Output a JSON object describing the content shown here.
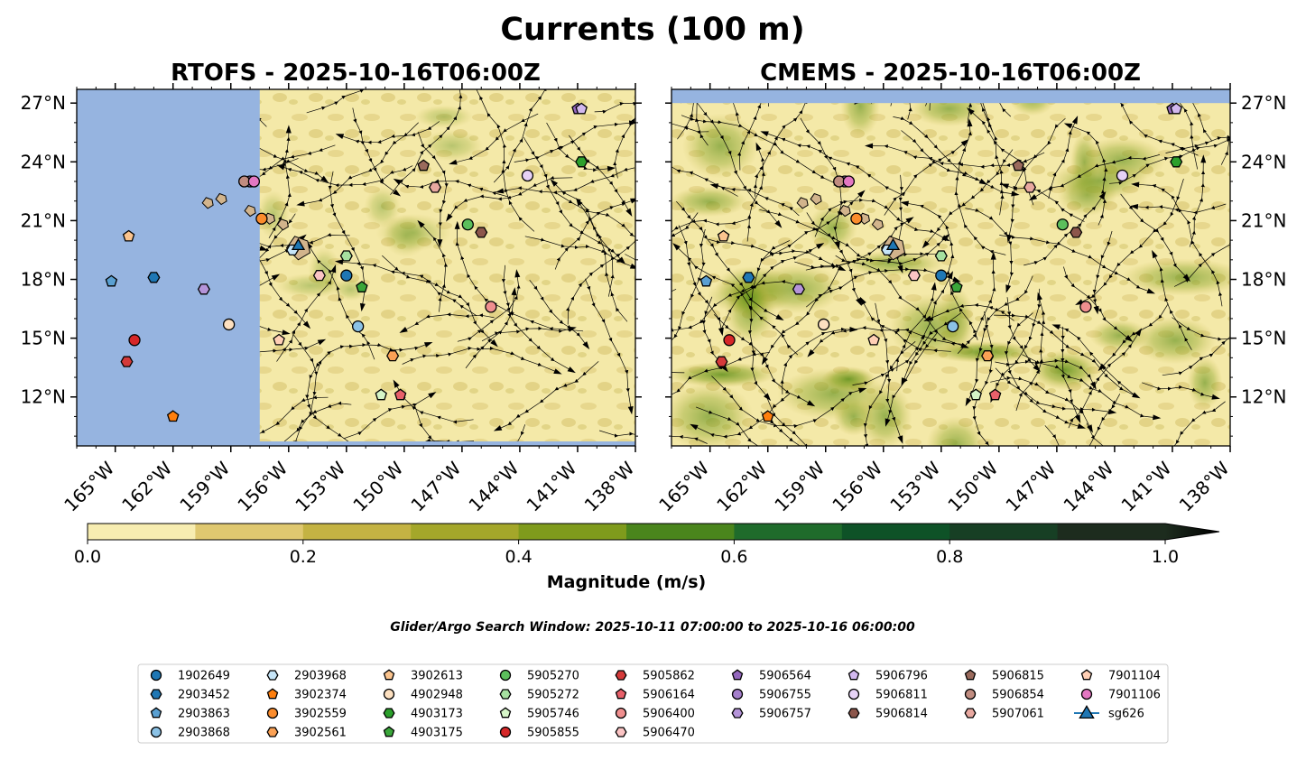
{
  "figure": {
    "title": "Currents (100 m)",
    "search_window": "Glider/Argo Search Window: 2025-10-11 07:00:00 to 2025-10-16 06:00:00"
  },
  "panels": [
    {
      "id": "rtofs",
      "title": "RTOFS - 2025-10-16T06:00Z",
      "valid_lon_min": -157.5
    },
    {
      "id": "cmems",
      "title": "CMEMS - 2025-10-16T06:00Z",
      "valid_lat_max": 27.0
    }
  ],
  "map": {
    "lon_range": [
      -167.0,
      -138.0
    ],
    "lat_range": [
      9.5,
      27.7
    ],
    "lon_ticks": [
      -165,
      -162,
      -159,
      -156,
      -153,
      -150,
      -147,
      -144,
      -141,
      -138
    ],
    "lon_tick_labels": [
      "165°W",
      "162°W",
      "159°W",
      "156°W",
      "153°W",
      "150°W",
      "147°W",
      "144°W",
      "141°W",
      "138°W"
    ],
    "lat_ticks": [
      27,
      24,
      21,
      18,
      15,
      12
    ],
    "lat_tick_labels": [
      "27°N",
      "24°N",
      "21°N",
      "18°N",
      "15°N",
      "12°N"
    ]
  },
  "colorbar": {
    "label": "Magnitude (m/s)",
    "range": [
      0,
      1.0
    ],
    "ticks": [
      0.0,
      0.2,
      0.4,
      0.6,
      0.8,
      1.0
    ],
    "tick_labels": [
      "0.0",
      "0.2",
      "0.4",
      "0.6",
      "0.8",
      "1.0"
    ],
    "colors": [
      "#f7edb1",
      "#dfc870",
      "#c4b343",
      "#a4a72a",
      "#7f9b1c",
      "#4a851c",
      "#1f6b2b",
      "#0e5227",
      "#173f24",
      "#1d2c1e"
    ],
    "extend": "max"
  },
  "colors": {
    "land": "#d2b48c",
    "no_data": "#96b4e0"
  },
  "islands": [
    {
      "name": "Hawaii",
      "lon": -155.5,
      "lat": 19.6
    },
    {
      "name": "Maui",
      "lon": -156.3,
      "lat": 20.8
    },
    {
      "name": "Molokai",
      "lon": -157.0,
      "lat": 21.1
    },
    {
      "name": "Oahu",
      "lon": -158.0,
      "lat": 21.5
    },
    {
      "name": "Kauai",
      "lon": -159.5,
      "lat": 22.1
    },
    {
      "name": "Niihau",
      "lon": -160.2,
      "lat": 21.9
    }
  ],
  "platforms": [
    {
      "id": "1902649",
      "color": "#1f77b4",
      "marker": "circle",
      "lon": -153.0,
      "lat": 18.2
    },
    {
      "id": "2903452",
      "color": "#1f77b4",
      "marker": "hexagon",
      "lon": -163.0,
      "lat": 18.1
    },
    {
      "id": "2903863",
      "color": "#5aa0d2",
      "marker": "pentagon",
      "lon": -165.2,
      "lat": 17.9
    },
    {
      "id": "2903868",
      "color": "#8bc2e6",
      "marker": "circle",
      "lon": -152.4,
      "lat": 15.6
    },
    {
      "id": "2903968",
      "color": "#c6e5f8",
      "marker": "hexagon",
      "lon": -155.8,
      "lat": 19.5
    },
    {
      "id": "3902374",
      "color": "#ff7f0e",
      "marker": "pentagon",
      "lon": -162.0,
      "lat": 11.0
    },
    {
      "id": "3902559",
      "color": "#fb8c2c",
      "marker": "circle",
      "lon": -157.4,
      "lat": 21.1
    },
    {
      "id": "3902561",
      "color": "#fba155",
      "marker": "hexagon",
      "lon": -150.6,
      "lat": 14.1
    },
    {
      "id": "3902613",
      "color": "#fbc48e",
      "marker": "pentagon",
      "lon": -164.3,
      "lat": 20.2
    },
    {
      "id": "4902948",
      "color": "#fde0c0",
      "marker": "circle",
      "lon": -159.1,
      "lat": 15.7
    },
    {
      "id": "4903173",
      "color": "#2ca02c",
      "marker": "hexagon",
      "lon": -140.8,
      "lat": 24.0
    },
    {
      "id": "4903175",
      "color": "#3aa63a",
      "marker": "pentagon",
      "lon": -152.2,
      "lat": 17.6
    },
    {
      "id": "5905270",
      "color": "#5cbf5c",
      "marker": "circle",
      "lon": -146.7,
      "lat": 20.8
    },
    {
      "id": "5905272",
      "color": "#a6e0a0",
      "marker": "hexagon",
      "lon": -153.0,
      "lat": 19.2
    },
    {
      "id": "5905746",
      "color": "#d6f5c8",
      "marker": "pentagon",
      "lon": -151.2,
      "lat": 12.1
    },
    {
      "id": "5905855",
      "color": "#d62728",
      "marker": "circle",
      "lon": -164.0,
      "lat": 14.9
    },
    {
      "id": "5905862",
      "color": "#d43a3a",
      "marker": "hexagon",
      "lon": -164.4,
      "lat": 13.8
    },
    {
      "id": "5906164",
      "color": "#e8606a",
      "marker": "pentagon",
      "lon": -150.2,
      "lat": 12.1
    },
    {
      "id": "5906400",
      "color": "#f08f8f",
      "marker": "circle",
      "lon": -145.5,
      "lat": 16.6
    },
    {
      "id": "5906470",
      "color": "#fbc4c4",
      "marker": "hexagon",
      "lon": -154.4,
      "lat": 18.2
    },
    {
      "id": "5906564",
      "color": "#9467bd",
      "marker": "pentagon",
      "lon": -141.0,
      "lat": 26.7
    },
    {
      "id": "5906755",
      "color": "#a57fcc",
      "marker": "circle",
      "lon": -158.0,
      "lat": 23.0
    },
    {
      "id": "5906757",
      "color": "#b594d9",
      "marker": "hexagon",
      "lon": -160.4,
      "lat": 17.5
    },
    {
      "id": "5906796",
      "color": "#d2b8ee",
      "marker": "pentagon",
      "lon": -140.8,
      "lat": 26.7
    },
    {
      "id": "5906811",
      "color": "#e6d2f6",
      "marker": "circle",
      "lon": -143.6,
      "lat": 23.3
    },
    {
      "id": "5906814",
      "color": "#8c564b",
      "marker": "hexagon",
      "lon": -146.0,
      "lat": 20.4
    },
    {
      "id": "5906815",
      "color": "#9a6a5c",
      "marker": "pentagon",
      "lon": -149.0,
      "lat": 23.8
    },
    {
      "id": "5906854",
      "color": "#c08c80",
      "marker": "circle",
      "lon": -158.3,
      "lat": 23.0
    },
    {
      "id": "5907061",
      "color": "#e8a8a0",
      "marker": "hexagon",
      "lon": -148.4,
      "lat": 22.7
    },
    {
      "id": "7901104",
      "color": "#ffcfb5",
      "marker": "pentagon",
      "lon": -156.5,
      "lat": 14.9
    },
    {
      "id": "7901106",
      "color": "#e377c2",
      "marker": "circle",
      "lon": -157.8,
      "lat": 23.0
    },
    {
      "id": "sg626",
      "color": "#1f77b4",
      "marker": "triangle",
      "lon": -155.5,
      "lat": 19.7
    }
  ]
}
